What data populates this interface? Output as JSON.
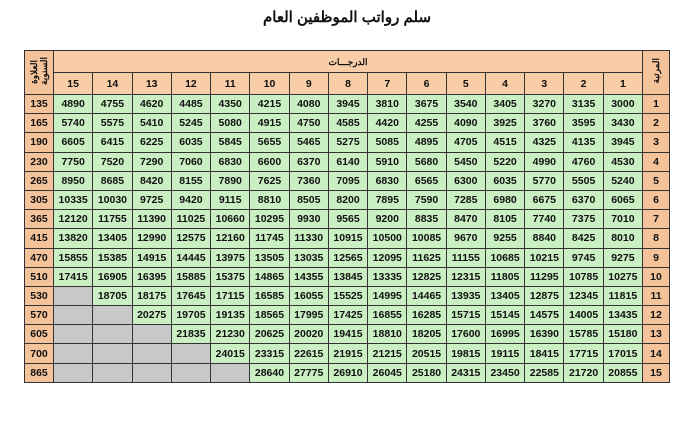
{
  "title": "سلم رواتب الموظفين العام",
  "headers": {
    "rank": "المرتبة",
    "degrees": "الدرجـــات",
    "annual_increment": "العلاوة السنوية"
  },
  "degrees": [
    "1",
    "2",
    "3",
    "4",
    "5",
    "6",
    "7",
    "8",
    "9",
    "10",
    "11",
    "12",
    "13",
    "14",
    "15"
  ],
  "colors": {
    "header": "#f8cda8",
    "cell": "#c9efc3",
    "empty": "#c8c8c8"
  },
  "rows": [
    {
      "rank": "1",
      "increment": "135",
      "salaries": [
        "3000",
        "3135",
        "3270",
        "3405",
        "3540",
        "3675",
        "3810",
        "3945",
        "4080",
        "4215",
        "4350",
        "4485",
        "4620",
        "4755",
        "4890"
      ]
    },
    {
      "rank": "2",
      "increment": "165",
      "salaries": [
        "3430",
        "3595",
        "3760",
        "3925",
        "4090",
        "4255",
        "4420",
        "4585",
        "4750",
        "4915",
        "5080",
        "5245",
        "5410",
        "5575",
        "5740"
      ]
    },
    {
      "rank": "3",
      "increment": "190",
      "salaries": [
        "3945",
        "4135",
        "4325",
        "4515",
        "4705",
        "4895",
        "5085",
        "5275",
        "5465",
        "5655",
        "5845",
        "6035",
        "6225",
        "6415",
        "6605"
      ]
    },
    {
      "rank": "4",
      "increment": "230",
      "salaries": [
        "4530",
        "4760",
        "4990",
        "5220",
        "5450",
        "5680",
        "5910",
        "6140",
        "6370",
        "6600",
        "6830",
        "7060",
        "7290",
        "7520",
        "7750"
      ]
    },
    {
      "rank": "5",
      "increment": "265",
      "salaries": [
        "5240",
        "5505",
        "5770",
        "6035",
        "6300",
        "6565",
        "6830",
        "7095",
        "7360",
        "7625",
        "7890",
        "8155",
        "8420",
        "8685",
        "8950"
      ]
    },
    {
      "rank": "6",
      "increment": "305",
      "salaries": [
        "6065",
        "6370",
        "6675",
        "6980",
        "7285",
        "7590",
        "7895",
        "8200",
        "8505",
        "8810",
        "9115",
        "9420",
        "9725",
        "10030",
        "10335"
      ]
    },
    {
      "rank": "7",
      "increment": "365",
      "salaries": [
        "7010",
        "7375",
        "7740",
        "8105",
        "8470",
        "8835",
        "9200",
        "9565",
        "9930",
        "10295",
        "10660",
        "11025",
        "11390",
        "11755",
        "12120"
      ]
    },
    {
      "rank": "8",
      "increment": "415",
      "salaries": [
        "8010",
        "8425",
        "8840",
        "9255",
        "9670",
        "10085",
        "10500",
        "10915",
        "11330",
        "11745",
        "12160",
        "12575",
        "12990",
        "13405",
        "13820"
      ]
    },
    {
      "rank": "9",
      "increment": "470",
      "salaries": [
        "9275",
        "9745",
        "10215",
        "10685",
        "11155",
        "11625",
        "12095",
        "12565",
        "13035",
        "13505",
        "13975",
        "14445",
        "14915",
        "15385",
        "15855"
      ]
    },
    {
      "rank": "10",
      "increment": "510",
      "salaries": [
        "10275",
        "10785",
        "11295",
        "11805",
        "12315",
        "12825",
        "13335",
        "13845",
        "14355",
        "14865",
        "15375",
        "15885",
        "16395",
        "16905",
        "17415"
      ]
    },
    {
      "rank": "11",
      "increment": "530",
      "salaries": [
        "11815",
        "12345",
        "12875",
        "13405",
        "13935",
        "14465",
        "14995",
        "15525",
        "16055",
        "16585",
        "17115",
        "17645",
        "18175",
        "18705",
        null
      ]
    },
    {
      "rank": "12",
      "increment": "570",
      "salaries": [
        "13435",
        "14005",
        "14575",
        "15145",
        "15715",
        "16285",
        "16855",
        "17425",
        "17995",
        "18565",
        "19135",
        "19705",
        "20275",
        null,
        null
      ]
    },
    {
      "rank": "13",
      "increment": "605",
      "salaries": [
        "15180",
        "15785",
        "16390",
        "16995",
        "17600",
        "18205",
        "18810",
        "19415",
        "20020",
        "20625",
        "21230",
        "21835",
        null,
        null,
        null
      ]
    },
    {
      "rank": "14",
      "increment": "700",
      "salaries": [
        "17015",
        "17715",
        "18415",
        "19115",
        "19815",
        "20515",
        "21215",
        "21915",
        "22615",
        "23315",
        "24015",
        null,
        null,
        null,
        null
      ]
    },
    {
      "rank": "15",
      "increment": "865",
      "salaries": [
        "20855",
        "21720",
        "22585",
        "23450",
        "24315",
        "25180",
        "26045",
        "26910",
        "27775",
        "28640",
        null,
        null,
        null,
        null,
        null
      ]
    }
  ]
}
